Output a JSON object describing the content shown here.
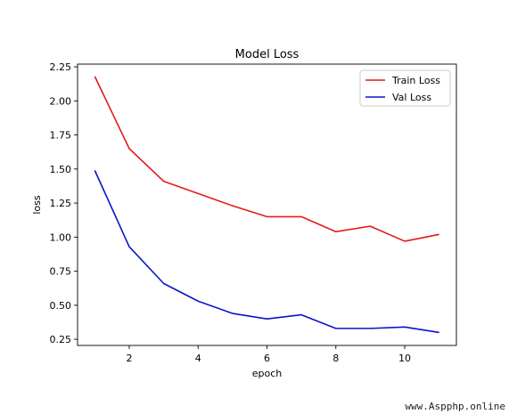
{
  "chart_data": {
    "type": "line",
    "title": "Model Loss",
    "xlabel": "epoch",
    "ylabel": "loss",
    "x": [
      1,
      2,
      3,
      4,
      5,
      6,
      7,
      8,
      9,
      10,
      11
    ],
    "xlim": [
      0.5,
      11.5
    ],
    "ylim": [
      0.205,
      2.27
    ],
    "xticks": [
      2,
      4,
      6,
      8,
      10
    ],
    "yticks": [
      0.25,
      0.5,
      0.75,
      1.0,
      1.25,
      1.5,
      1.75,
      2.0,
      2.25
    ],
    "ytick_labels": [
      "0.25",
      "0.50",
      "0.75",
      "1.00",
      "1.25",
      "1.50",
      "1.75",
      "2.00",
      "2.25"
    ],
    "grid": false,
    "legend_position": "top-right",
    "series": [
      {
        "name": "Train Loss",
        "color": "#e31a1c",
        "values": [
          2.18,
          1.65,
          1.41,
          1.32,
          1.23,
          1.15,
          1.15,
          1.04,
          1.08,
          0.97,
          1.02
        ]
      },
      {
        "name": "Val Loss",
        "color": "#0a14c8",
        "values": [
          1.49,
          0.93,
          0.66,
          0.53,
          0.44,
          0.4,
          0.43,
          0.33,
          0.33,
          0.34,
          0.3
        ]
      }
    ]
  },
  "watermark": {
    "text": "www.Aspphp.online"
  }
}
